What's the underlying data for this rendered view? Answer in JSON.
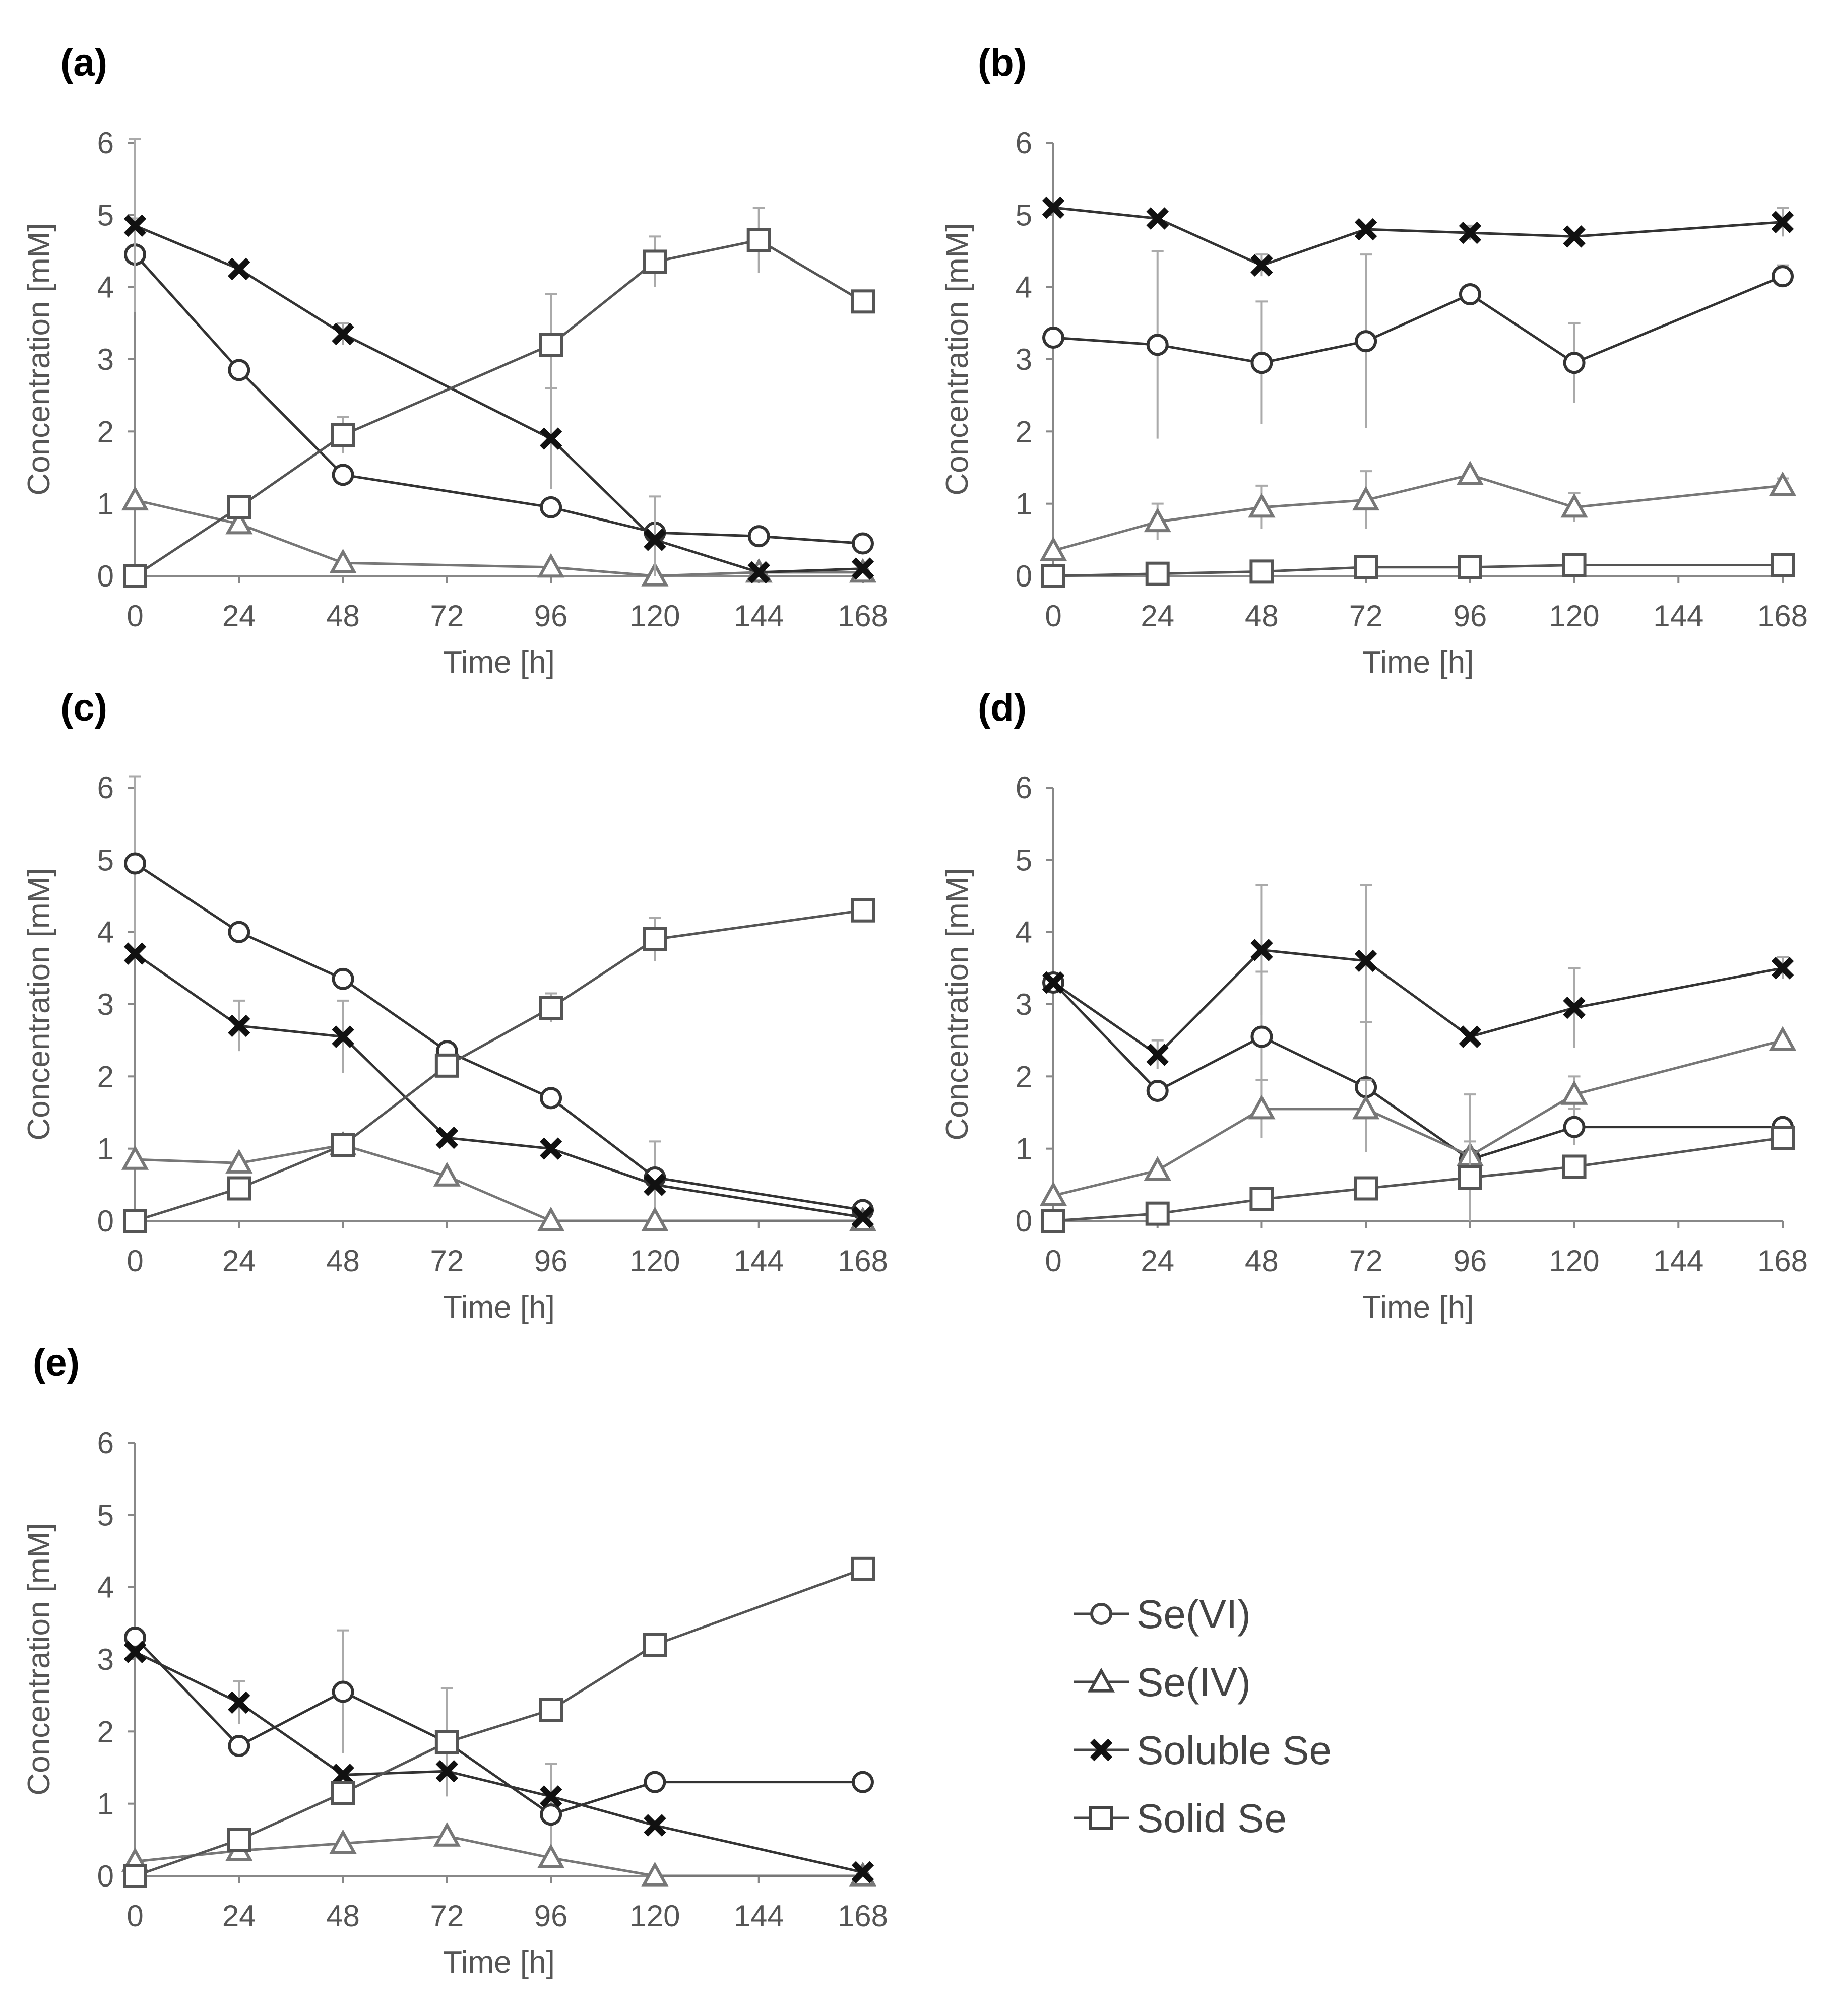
{
  "legend": [
    {
      "label": "Se(VI)",
      "marker": "circle"
    },
    {
      "label": "Se(IV)",
      "marker": "triangle"
    },
    {
      "label": "Soluble Se",
      "marker": "cross"
    },
    {
      "label": "Solid Se",
      "marker": "square"
    }
  ],
  "colors": {
    "line_dark": "#333333",
    "line_light": "#999999",
    "text": "#555555",
    "error_bar": "#aaaaaa"
  },
  "chart_data": [
    {
      "panel": "(a)",
      "type": "line",
      "xlabel": "Time [h]",
      "ylabel": "Concentration [mM]",
      "xlim": [
        0,
        168
      ],
      "ylim": [
        0,
        6
      ],
      "xticks": [
        0,
        24,
        48,
        72,
        96,
        120,
        144,
        168
      ],
      "yticks": [
        0,
        1,
        2,
        3,
        4,
        5,
        6
      ],
      "series": [
        {
          "name": "Se(VI)",
          "marker": "circle",
          "x": [
            0,
            24,
            48,
            96,
            120,
            144,
            168
          ],
          "y": [
            4.45,
            2.85,
            1.4,
            0.95,
            0.6,
            0.55,
            0.45
          ],
          "err": [
            0.5,
            0,
            0,
            0,
            0,
            0,
            0
          ]
        },
        {
          "name": "Se(IV)",
          "marker": "triangle",
          "x": [
            0,
            24,
            48,
            96,
            120,
            144,
            168
          ],
          "y": [
            1.05,
            0.72,
            0.18,
            0.12,
            0.0,
            0.05,
            0.05
          ],
          "err": [
            0,
            0,
            0,
            0,
            0,
            0,
            0
          ]
        },
        {
          "name": "Soluble Se",
          "marker": "cross",
          "x": [
            0,
            24,
            48,
            96,
            120,
            144,
            168
          ],
          "y": [
            4.85,
            4.25,
            3.35,
            1.9,
            0.5,
            0.05,
            0.1
          ],
          "err": [
            1.2,
            0,
            0.15,
            0.7,
            0.6,
            0,
            0
          ]
        },
        {
          "name": "Solid Se",
          "marker": "square",
          "x": [
            0,
            24,
            48,
            96,
            120,
            144,
            168
          ],
          "y": [
            0.0,
            0.95,
            1.95,
            3.2,
            4.35,
            4.65,
            3.8
          ],
          "err": [
            0,
            0,
            0.25,
            0.7,
            0.35,
            0.45,
            0
          ]
        }
      ]
    },
    {
      "panel": "(b)",
      "type": "line",
      "xlabel": "Time [h]",
      "ylabel": "Concentration [mM]",
      "xlim": [
        0,
        168
      ],
      "ylim": [
        0,
        6
      ],
      "xticks": [
        0,
        24,
        48,
        72,
        96,
        120,
        144,
        168
      ],
      "yticks": [
        0,
        1,
        2,
        3,
        4,
        5,
        6
      ],
      "series": [
        {
          "name": "Se(VI)",
          "marker": "circle",
          "x": [
            0,
            24,
            48,
            72,
            96,
            120,
            168
          ],
          "y": [
            3.3,
            3.2,
            2.95,
            3.25,
            3.9,
            2.95,
            4.15
          ],
          "err": [
            0,
            1.3,
            0.85,
            1.2,
            0,
            0.55,
            0.15
          ]
        },
        {
          "name": "Se(IV)",
          "marker": "triangle",
          "x": [
            0,
            24,
            48,
            72,
            96,
            120,
            168
          ],
          "y": [
            0.35,
            0.75,
            0.95,
            1.05,
            1.4,
            0.95,
            1.25
          ],
          "err": [
            0,
            0.25,
            0.3,
            0.4,
            0,
            0.2,
            0.1
          ]
        },
        {
          "name": "Soluble Se",
          "marker": "cross",
          "x": [
            0,
            24,
            48,
            72,
            96,
            120,
            168
          ],
          "y": [
            5.1,
            4.95,
            4.3,
            4.8,
            4.75,
            4.7,
            4.9
          ],
          "err": [
            0,
            0,
            0.15,
            0,
            0.1,
            0,
            0.2
          ]
        },
        {
          "name": "Solid Se",
          "marker": "square",
          "x": [
            0,
            24,
            48,
            72,
            96,
            120,
            168
          ],
          "y": [
            0.0,
            0.03,
            0.06,
            0.12,
            0.12,
            0.15,
            0.15
          ],
          "err": [
            0,
            0,
            0,
            0,
            0,
            0,
            0
          ]
        }
      ]
    },
    {
      "panel": "(c)",
      "type": "line",
      "xlabel": "Time [h]",
      "ylabel": "Concentration [mM]",
      "xlim": [
        0,
        168
      ],
      "ylim": [
        0,
        6
      ],
      "xticks": [
        0,
        24,
        48,
        72,
        96,
        120,
        144,
        168
      ],
      "yticks": [
        0,
        1,
        2,
        3,
        4,
        5,
        6
      ],
      "series": [
        {
          "name": "Se(VI)",
          "marker": "circle",
          "x": [
            0,
            24,
            48,
            72,
            96,
            120,
            168
          ],
          "y": [
            4.95,
            4.0,
            3.35,
            2.35,
            1.7,
            0.6,
            0.15
          ],
          "err": [
            1.2,
            0,
            0.1,
            0,
            0,
            0.5,
            0
          ]
        },
        {
          "name": "Se(IV)",
          "marker": "triangle",
          "x": [
            0,
            24,
            48,
            72,
            96,
            120,
            168
          ],
          "y": [
            0.85,
            0.8,
            1.05,
            0.62,
            0.0,
            0.0,
            0.0
          ],
          "err": [
            0,
            0,
            0,
            0,
            0,
            0,
            0
          ]
        },
        {
          "name": "Soluble Se",
          "marker": "cross",
          "x": [
            0,
            24,
            48,
            72,
            96,
            120,
            168
          ],
          "y": [
            3.7,
            2.7,
            2.55,
            1.15,
            1.0,
            0.5,
            0.05
          ],
          "err": [
            0,
            0.35,
            0.5,
            0,
            0,
            0,
            0
          ]
        },
        {
          "name": "Solid Se",
          "marker": "square",
          "x": [
            0,
            24,
            48,
            72,
            96,
            120,
            168
          ],
          "y": [
            0.0,
            0.45,
            1.05,
            2.15,
            2.95,
            3.9,
            4.3
          ],
          "err": [
            0,
            0,
            0,
            0,
            0.2,
            0.3,
            0.15
          ]
        }
      ]
    },
    {
      "panel": "(d)",
      "type": "line",
      "xlabel": "Time [h]",
      "ylabel": "Concentration [mM]",
      "xlim": [
        0,
        168
      ],
      "ylim": [
        0,
        6
      ],
      "xticks": [
        0,
        24,
        48,
        72,
        96,
        120,
        144,
        168
      ],
      "yticks": [
        0,
        1,
        2,
        3,
        4,
        5,
        6
      ],
      "series": [
        {
          "name": "Se(VI)",
          "marker": "circle",
          "x": [
            0,
            24,
            48,
            72,
            96,
            120,
            168
          ],
          "y": [
            3.3,
            1.8,
            2.55,
            1.85,
            0.85,
            1.3,
            1.3
          ],
          "err": [
            0,
            0,
            0.9,
            0.9,
            0.9,
            0.25,
            0
          ]
        },
        {
          "name": "Se(IV)",
          "marker": "triangle",
          "x": [
            0,
            24,
            48,
            72,
            96,
            120,
            168
          ],
          "y": [
            0.35,
            0.7,
            1.55,
            1.55,
            0.9,
            1.75,
            2.5
          ],
          "err": [
            0,
            0,
            0.4,
            0.4,
            0,
            0.25,
            0
          ]
        },
        {
          "name": "Soluble Se",
          "marker": "cross",
          "x": [
            0,
            24,
            48,
            72,
            96,
            120,
            168
          ],
          "y": [
            3.3,
            2.3,
            3.75,
            3.6,
            2.55,
            2.95,
            3.5
          ],
          "err": [
            0,
            0.2,
            0.9,
            1.05,
            0,
            0.55,
            0.15
          ]
        },
        {
          "name": "Solid Se",
          "marker": "square",
          "x": [
            0,
            24,
            48,
            72,
            96,
            120,
            168
          ],
          "y": [
            0.0,
            0.1,
            0.3,
            0.45,
            0.6,
            0.75,
            1.15
          ],
          "err": [
            0,
            0,
            0,
            0,
            0.5,
            0,
            0
          ]
        }
      ]
    },
    {
      "panel": "(e)",
      "type": "line",
      "xlabel": "Time [h]",
      "ylabel": "Concentration [mM]",
      "xlim": [
        0,
        168
      ],
      "ylim": [
        0,
        6
      ],
      "xticks": [
        0,
        24,
        48,
        72,
        96,
        120,
        144,
        168
      ],
      "yticks": [
        0,
        1,
        2,
        3,
        4,
        5,
        6
      ],
      "series": [
        {
          "name": "Se(VI)",
          "marker": "circle",
          "x": [
            0,
            24,
            48,
            72,
            96,
            120,
            168
          ],
          "y": [
            3.3,
            1.8,
            2.55,
            1.85,
            0.85,
            1.3,
            1.3
          ],
          "err": [
            0,
            0,
            0.85,
            0.75,
            0.7,
            0,
            0
          ]
        },
        {
          "name": "Se(IV)",
          "marker": "triangle",
          "x": [
            0,
            24,
            48,
            72,
            96,
            120,
            168
          ],
          "y": [
            0.2,
            0.35,
            0.45,
            0.55,
            0.25,
            0.0,
            0.0
          ],
          "err": [
            0,
            0,
            0,
            0,
            0,
            0,
            0
          ]
        },
        {
          "name": "Soluble Se",
          "marker": "cross",
          "x": [
            0,
            24,
            48,
            72,
            96,
            120,
            168
          ],
          "y": [
            3.1,
            2.4,
            1.4,
            1.45,
            1.1,
            0.7,
            0.05
          ],
          "err": [
            0,
            0.3,
            0,
            0,
            0,
            0,
            0
          ]
        },
        {
          "name": "Solid Se",
          "marker": "square",
          "x": [
            0,
            24,
            48,
            72,
            96,
            120,
            168
          ],
          "y": [
            0.0,
            0.5,
            1.15,
            1.85,
            2.3,
            3.2,
            4.25
          ],
          "err": [
            0,
            0,
            0,
            0,
            0,
            0,
            0
          ]
        }
      ]
    }
  ]
}
